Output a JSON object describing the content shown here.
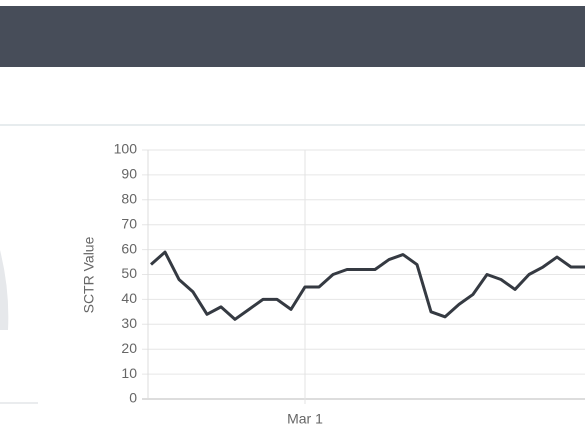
{
  "chart_data": {
    "type": "line",
    "y_label": "SCTR Value",
    "categories": [
      null,
      null,
      null,
      null,
      null,
      null,
      null,
      null,
      null,
      null,
      null,
      "Mar 1",
      null,
      null,
      null,
      null,
      null,
      null,
      null,
      null,
      null,
      null,
      null,
      null,
      null,
      null,
      null,
      null,
      null,
      null,
      null,
      null
    ],
    "series": [
      {
        "color": "#353a42",
        "values": [
          54,
          59,
          48,
          43,
          34,
          37,
          32,
          36,
          40,
          40,
          36,
          45,
          45,
          50,
          52,
          52,
          52,
          56,
          58,
          54,
          35,
          33,
          38,
          42,
          50,
          48,
          44,
          50,
          53,
          57,
          53,
          53
        ]
      }
    ],
    "ylim": [
      0,
      100
    ],
    "yticks": [
      0,
      10,
      20,
      30,
      40,
      50,
      60,
      70,
      80,
      90,
      100
    ],
    "grid": true
  }
}
